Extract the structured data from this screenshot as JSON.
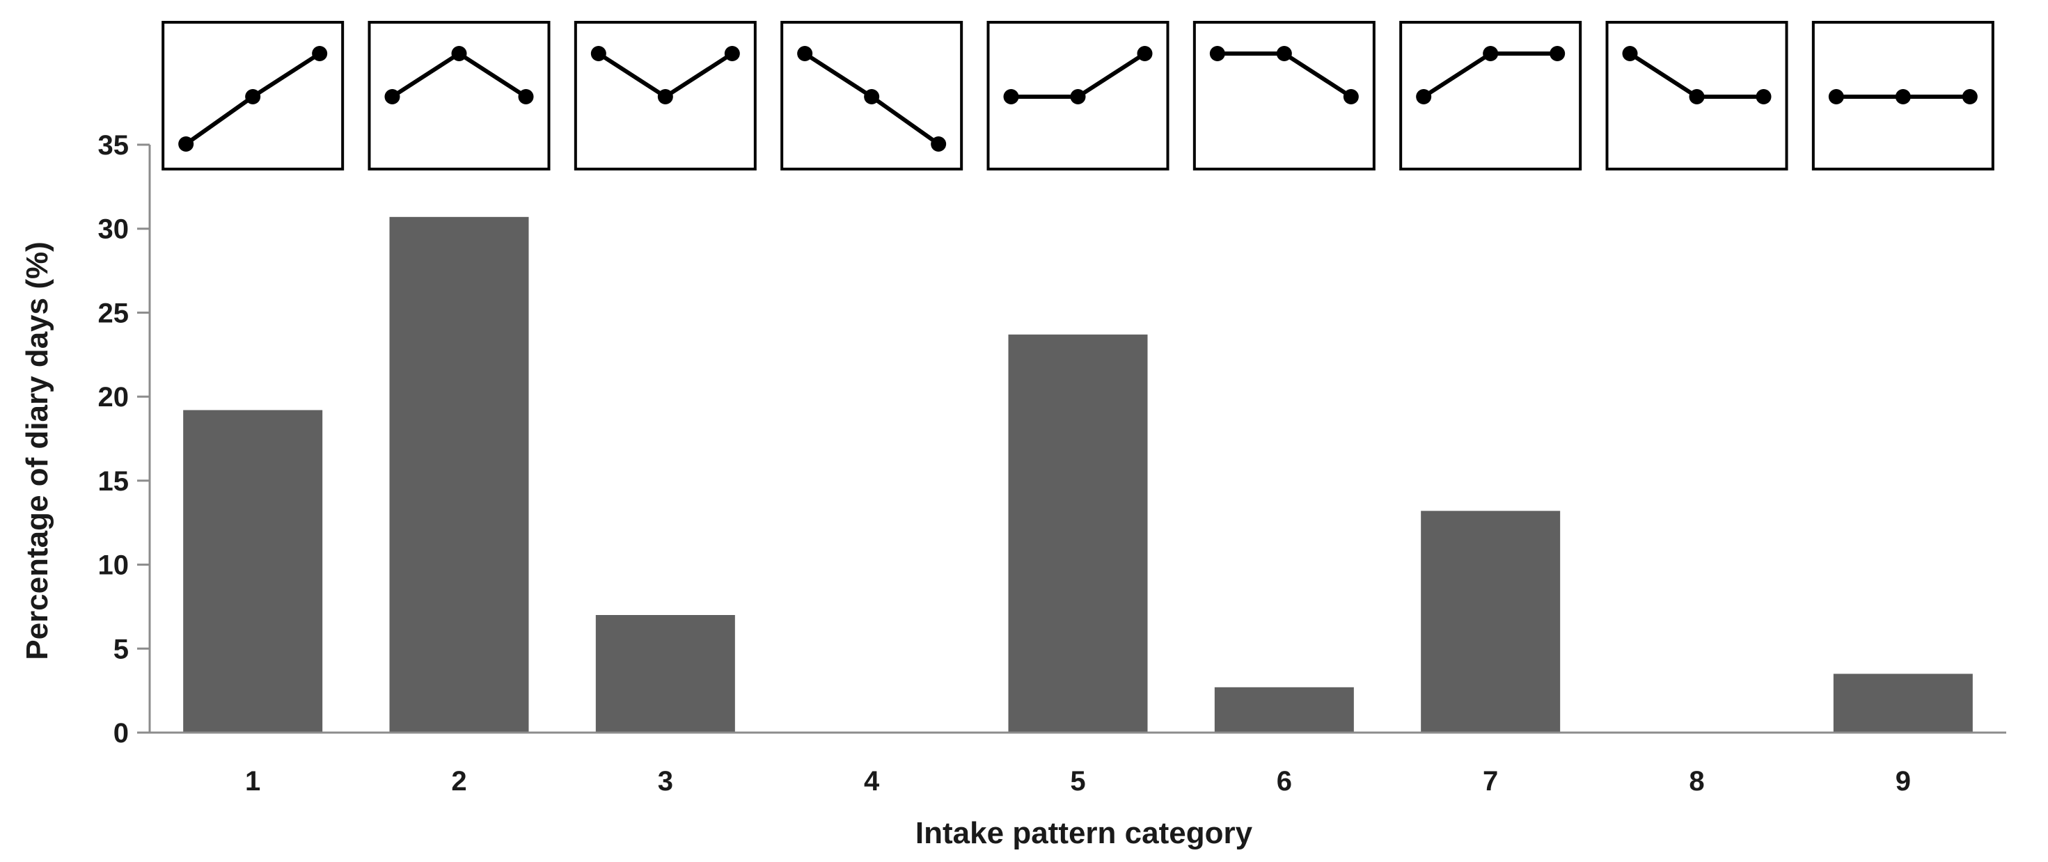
{
  "chart_data": {
    "type": "bar",
    "title": "",
    "xlabel": "Intake pattern category",
    "ylabel": "Percentage of diary days (%)",
    "ylim": [
      0,
      35
    ],
    "y_ticks": [
      "0",
      "5",
      "10",
      "15",
      "20",
      "25",
      "30",
      "35"
    ],
    "grid": false,
    "legend": "none",
    "bar_color": "#606060",
    "categories": [
      "1",
      "2",
      "3",
      "4",
      "5",
      "6",
      "7",
      "8",
      "9"
    ],
    "values": [
      19.2,
      30.7,
      7.0,
      0.0,
      23.7,
      2.7,
      13.2,
      0.0,
      3.5
    ],
    "pattern_icons": [
      {
        "category": "1",
        "levels": [
          0,
          1,
          2
        ]
      },
      {
        "category": "2",
        "levels": [
          1,
          2,
          1
        ]
      },
      {
        "category": "3",
        "levels": [
          2,
          1,
          2
        ]
      },
      {
        "category": "4",
        "levels": [
          2,
          1,
          0
        ]
      },
      {
        "category": "5",
        "levels": [
          1,
          1,
          2
        ]
      },
      {
        "category": "6",
        "levels": [
          2,
          2,
          1
        ]
      },
      {
        "category": "7",
        "levels": [
          1,
          2,
          2
        ]
      },
      {
        "category": "8",
        "levels": [
          2,
          1,
          1
        ]
      },
      {
        "category": "9",
        "levels": [
          1,
          1,
          1
        ]
      }
    ]
  }
}
